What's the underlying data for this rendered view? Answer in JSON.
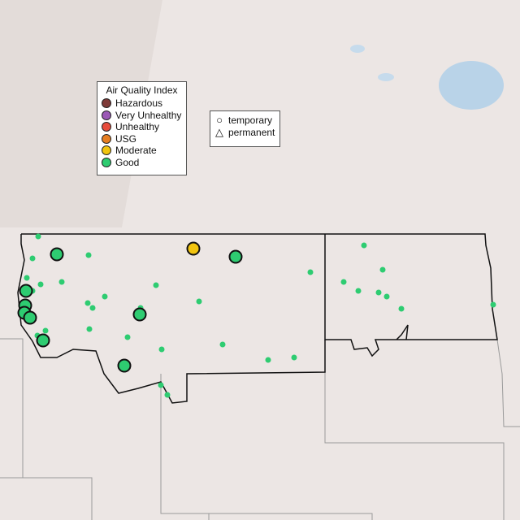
{
  "legend_aqi": {
    "title": "Air Quality Index",
    "items": [
      {
        "label": "Hazardous",
        "color": "#7e3a37"
      },
      {
        "label": "Very Unhealthy",
        "color": "#9b59b6"
      },
      {
        "label": "Unhealthy",
        "color": "#e74c3c"
      },
      {
        "label": "USG",
        "color": "#e67e22"
      },
      {
        "label": "Moderate",
        "color": "#f1c40f"
      },
      {
        "label": "Good",
        "color": "#2ecc71"
      }
    ]
  },
  "legend_type": {
    "items": [
      {
        "label": "temporary",
        "icon": "circle-icon"
      },
      {
        "label": "permanent",
        "icon": "triangle-icon"
      }
    ]
  },
  "monitors": {
    "temporary": [
      {
        "aqi": "Good"
      },
      {
        "aqi": "Good"
      },
      {
        "aqi": "Moderate"
      },
      {
        "aqi": "Good"
      },
      {
        "aqi": "Good"
      },
      {
        "aqi": "Good"
      },
      {
        "aqi": "Good"
      },
      {
        "aqi": "Good"
      },
      {
        "aqi": "Good"
      },
      {
        "aqi": "Good"
      }
    ],
    "permanent_count": 32,
    "permanent_aqi": "Good"
  }
}
